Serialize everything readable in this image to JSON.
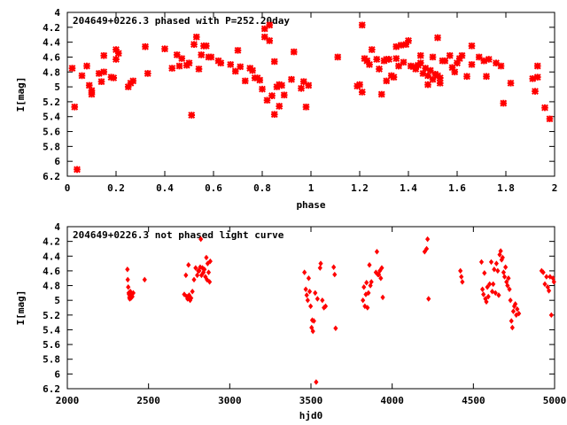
{
  "chart_data": [
    {
      "type": "scatter",
      "title": "204649+0226.3 phased with P=252.20day",
      "xlabel": "phase",
      "ylabel": "I[mag]",
      "xlim": [
        0,
        2
      ],
      "ylim": [
        4,
        6.2
      ],
      "y_inverted": true,
      "grid": false,
      "color": "#ff0000",
      "marker": "star",
      "x_ticks": [
        "0",
        "0.2",
        "0.4",
        "0.6",
        "0.8",
        "1",
        "1.2",
        "1.4",
        "1.6",
        "1.8",
        "2"
      ],
      "y_ticks": [
        "4",
        "4.2",
        "4.4",
        "4.6",
        "4.8",
        "5",
        "5.2",
        "5.4",
        "5.6",
        "5.8",
        "6",
        "6.2"
      ],
      "points": [
        [
          0.02,
          4.75
        ],
        [
          0.03,
          5.27
        ],
        [
          0.04,
          6.11
        ],
        [
          0.06,
          4.85
        ],
        [
          0.08,
          4.72
        ],
        [
          0.09,
          4.98
        ],
        [
          0.1,
          5.05
        ],
        [
          0.1,
          5.1
        ],
        [
          0.13,
          4.82
        ],
        [
          0.14,
          4.93
        ],
        [
          0.15,
          4.8
        ],
        [
          0.15,
          4.58
        ],
        [
          0.18,
          4.87
        ],
        [
          0.19,
          4.88
        ],
        [
          0.2,
          4.63
        ],
        [
          0.2,
          4.5
        ],
        [
          0.21,
          4.55
        ],
        [
          0.25,
          5.0
        ],
        [
          0.26,
          4.95
        ],
        [
          0.27,
          4.92
        ],
        [
          0.32,
          4.46
        ],
        [
          0.33,
          4.82
        ],
        [
          0.4,
          4.49
        ],
        [
          0.43,
          4.75
        ],
        [
          0.45,
          4.57
        ],
        [
          0.46,
          4.72
        ],
        [
          0.47,
          4.62
        ],
        [
          0.49,
          4.71
        ],
        [
          0.5,
          4.68
        ],
        [
          0.51,
          5.38
        ],
        [
          0.52,
          4.43
        ],
        [
          0.53,
          4.33
        ],
        [
          0.54,
          4.76
        ],
        [
          0.55,
          4.57
        ],
        [
          0.56,
          4.45
        ],
        [
          0.57,
          4.45
        ],
        [
          0.58,
          4.6
        ],
        [
          0.59,
          4.6
        ],
        [
          0.62,
          4.65
        ],
        [
          0.63,
          4.68
        ],
        [
          0.67,
          4.7
        ],
        [
          0.69,
          4.79
        ],
        [
          0.7,
          4.51
        ],
        [
          0.71,
          4.73
        ],
        [
          0.73,
          4.92
        ],
        [
          0.75,
          4.75
        ],
        [
          0.76,
          4.78
        ],
        [
          0.77,
          4.88
        ],
        [
          0.78,
          4.88
        ],
        [
          0.79,
          4.91
        ],
        [
          0.8,
          5.03
        ],
        [
          0.81,
          4.33
        ],
        [
          0.81,
          4.22
        ],
        [
          0.82,
          5.18
        ],
        [
          0.83,
          4.38
        ],
        [
          0.83,
          4.17
        ],
        [
          0.84,
          5.12
        ],
        [
          0.85,
          5.37
        ],
        [
          0.85,
          4.66
        ],
        [
          0.86,
          5.0
        ],
        [
          0.87,
          4.97
        ],
        [
          0.87,
          5.26
        ],
        [
          0.88,
          4.98
        ],
        [
          0.89,
          5.11
        ],
        [
          0.92,
          4.9
        ],
        [
          0.93,
          4.53
        ],
        [
          0.96,
          5.02
        ],
        [
          0.97,
          4.93
        ],
        [
          0.98,
          5.27
        ],
        [
          0.99,
          4.98
        ],
        [
          1.11,
          4.6
        ],
        [
          1.19,
          4.99
        ],
        [
          1.2,
          4.97
        ],
        [
          1.21,
          5.07
        ],
        [
          1.21,
          4.17
        ],
        [
          1.22,
          4.62
        ],
        [
          1.23,
          4.65
        ],
        [
          1.24,
          4.7
        ],
        [
          1.25,
          4.5
        ],
        [
          1.27,
          4.63
        ],
        [
          1.28,
          4.76
        ],
        [
          1.29,
          5.1
        ],
        [
          1.3,
          4.65
        ],
        [
          1.31,
          4.92
        ],
        [
          1.31,
          4.63
        ],
        [
          1.32,
          4.63
        ],
        [
          1.33,
          4.85
        ],
        [
          1.34,
          4.87
        ],
        [
          1.35,
          4.62
        ],
        [
          1.35,
          4.46
        ],
        [
          1.36,
          4.72
        ],
        [
          1.37,
          4.44
        ],
        [
          1.38,
          4.67
        ],
        [
          1.39,
          4.43
        ],
        [
          1.4,
          4.38
        ],
        [
          1.41,
          4.72
        ],
        [
          1.42,
          4.73
        ],
        [
          1.43,
          4.76
        ],
        [
          1.44,
          4.71
        ],
        [
          1.45,
          4.68
        ],
        [
          1.45,
          4.58
        ],
        [
          1.46,
          4.82
        ],
        [
          1.47,
          4.75
        ],
        [
          1.48,
          4.85
        ],
        [
          1.48,
          4.97
        ],
        [
          1.49,
          4.78
        ],
        [
          1.5,
          4.9
        ],
        [
          1.5,
          4.6
        ],
        [
          1.51,
          4.83
        ],
        [
          1.52,
          4.34
        ],
        [
          1.52,
          4.85
        ],
        [
          1.53,
          4.95
        ],
        [
          1.53,
          4.88
        ],
        [
          1.54,
          4.65
        ],
        [
          1.55,
          4.65
        ],
        [
          1.57,
          4.58
        ],
        [
          1.58,
          4.74
        ],
        [
          1.59,
          4.8
        ],
        [
          1.6,
          4.68
        ],
        [
          1.61,
          4.62
        ],
        [
          1.62,
          4.58
        ],
        [
          1.64,
          4.86
        ],
        [
          1.66,
          4.7
        ],
        [
          1.66,
          4.45
        ],
        [
          1.69,
          4.6
        ],
        [
          1.71,
          4.65
        ],
        [
          1.72,
          4.86
        ],
        [
          1.73,
          4.63
        ],
        [
          1.76,
          4.68
        ],
        [
          1.78,
          4.72
        ],
        [
          1.79,
          5.22
        ],
        [
          1.82,
          4.95
        ],
        [
          1.91,
          4.89
        ],
        [
          1.92,
          5.06
        ],
        [
          1.93,
          4.87
        ],
        [
          1.93,
          4.72
        ],
        [
          1.96,
          5.28
        ],
        [
          1.98,
          5.43
        ]
      ]
    },
    {
      "type": "scatter",
      "title": "204649+0226.3 not phased light curve",
      "xlabel": "hjd0",
      "ylabel": "I[mag]",
      "xlim": [
        2000,
        5000
      ],
      "ylim": [
        4,
        6.2
      ],
      "y_inverted": true,
      "grid": false,
      "color": "#ff0000",
      "marker": "diamond",
      "x_ticks": [
        "2000",
        "2500",
        "3000",
        "3500",
        "4000",
        "4500",
        "5000"
      ],
      "y_ticks": [
        "4",
        "4.2",
        "4.4",
        "4.6",
        "4.8",
        "5",
        "5.2",
        "5.4",
        "5.6",
        "5.8",
        "6",
        "6.2"
      ],
      "points": [
        [
          2370,
          4.58
        ],
        [
          2372,
          4.72
        ],
        [
          2375,
          4.82
        ],
        [
          2378,
          4.9
        ],
        [
          2380,
          4.92
        ],
        [
          2382,
          4.96
        ],
        [
          2384,
          4.98
        ],
        [
          2386,
          4.93
        ],
        [
          2388,
          4.88
        ],
        [
          2390,
          4.95
        ],
        [
          2392,
          4.97
        ],
        [
          2396,
          4.93
        ],
        [
          2400,
          4.95
        ],
        [
          2406,
          4.9
        ],
        [
          2476,
          4.72
        ],
        [
          2720,
          4.92
        ],
        [
          2730,
          4.66
        ],
        [
          2736,
          4.95
        ],
        [
          2740,
          4.98
        ],
        [
          2746,
          4.52
        ],
        [
          2750,
          4.93
        ],
        [
          2756,
          5.0
        ],
        [
          2762,
          4.97
        ],
        [
          2770,
          4.88
        ],
        [
          2780,
          4.72
        ],
        [
          2790,
          4.56
        ],
        [
          2800,
          4.66
        ],
        [
          2806,
          4.6
        ],
        [
          2812,
          4.6
        ],
        [
          2818,
          4.55
        ],
        [
          2822,
          4.17
        ],
        [
          2826,
          4.66
        ],
        [
          2832,
          4.56
        ],
        [
          2838,
          4.62
        ],
        [
          2844,
          4.58
        ],
        [
          2850,
          4.68
        ],
        [
          2856,
          4.42
        ],
        [
          2860,
          4.72
        ],
        [
          2864,
          4.5
        ],
        [
          2870,
          4.62
        ],
        [
          2876,
          4.75
        ],
        [
          2880,
          4.47
        ],
        [
          3460,
          4.62
        ],
        [
          3468,
          4.85
        ],
        [
          3474,
          4.93
        ],
        [
          3480,
          5.0
        ],
        [
          3486,
          4.7
        ],
        [
          3492,
          4.88
        ],
        [
          3498,
          5.08
        ],
        [
          3504,
          5.37
        ],
        [
          3508,
          5.27
        ],
        [
          3512,
          5.42
        ],
        [
          3518,
          5.28
        ],
        [
          3526,
          4.9
        ],
        [
          3532,
          6.11
        ],
        [
          3540,
          4.98
        ],
        [
          3556,
          4.56
        ],
        [
          3560,
          4.5
        ],
        [
          3570,
          5.0
        ],
        [
          3580,
          5.1
        ],
        [
          3590,
          5.08
        ],
        [
          3640,
          4.55
        ],
        [
          3646,
          4.65
        ],
        [
          3652,
          5.38
        ],
        [
          3820,
          5.0
        ],
        [
          3826,
          4.82
        ],
        [
          3832,
          5.08
        ],
        [
          3838,
          4.92
        ],
        [
          3842,
          4.76
        ],
        [
          3848,
          5.1
        ],
        [
          3854,
          4.9
        ],
        [
          3860,
          4.52
        ],
        [
          3866,
          4.8
        ],
        [
          3872,
          4.75
        ],
        [
          3900,
          4.62
        ],
        [
          3906,
          4.34
        ],
        [
          3912,
          4.65
        ],
        [
          3918,
          4.65
        ],
        [
          3924,
          4.6
        ],
        [
          3930,
          4.7
        ],
        [
          3936,
          4.56
        ],
        [
          3942,
          4.96
        ],
        [
          4200,
          4.34
        ],
        [
          4212,
          4.3
        ],
        [
          4218,
          4.17
        ],
        [
          4224,
          4.98
        ],
        [
          4420,
          4.6
        ],
        [
          4426,
          4.68
        ],
        [
          4432,
          4.75
        ],
        [
          4550,
          4.48
        ],
        [
          4556,
          4.85
        ],
        [
          4562,
          4.92
        ],
        [
          4568,
          4.63
        ],
        [
          4574,
          4.98
        ],
        [
          4580,
          5.02
        ],
        [
          4586,
          4.82
        ],
        [
          4592,
          4.95
        ],
        [
          4600,
          4.78
        ],
        [
          4610,
          4.48
        ],
        [
          4616,
          4.88
        ],
        [
          4622,
          4.78
        ],
        [
          4628,
          4.58
        ],
        [
          4636,
          4.9
        ],
        [
          4642,
          4.5
        ],
        [
          4650,
          4.6
        ],
        [
          4656,
          4.93
        ],
        [
          4662,
          4.38
        ],
        [
          4668,
          4.33
        ],
        [
          4674,
          4.45
        ],
        [
          4680,
          4.42
        ],
        [
          4686,
          4.62
        ],
        [
          4692,
          4.68
        ],
        [
          4698,
          4.55
        ],
        [
          4704,
          4.75
        ],
        [
          4710,
          4.8
        ],
        [
          4716,
          4.7
        ],
        [
          4722,
          4.85
        ],
        [
          4728,
          5.0
        ],
        [
          4734,
          5.28
        ],
        [
          4740,
          5.37
        ],
        [
          4746,
          5.15
        ],
        [
          4752,
          5.08
        ],
        [
          4758,
          5.05
        ],
        [
          4764,
          5.2
        ],
        [
          4770,
          5.12
        ],
        [
          4780,
          5.18
        ],
        [
          4920,
          4.6
        ],
        [
          4930,
          4.62
        ],
        [
          4940,
          4.78
        ],
        [
          4950,
          4.68
        ],
        [
          4958,
          4.82
        ],
        [
          4965,
          4.87
        ],
        [
          4972,
          4.68
        ],
        [
          4980,
          5.2
        ],
        [
          4990,
          4.7
        ],
        [
          4996,
          4.75
        ]
      ]
    }
  ]
}
